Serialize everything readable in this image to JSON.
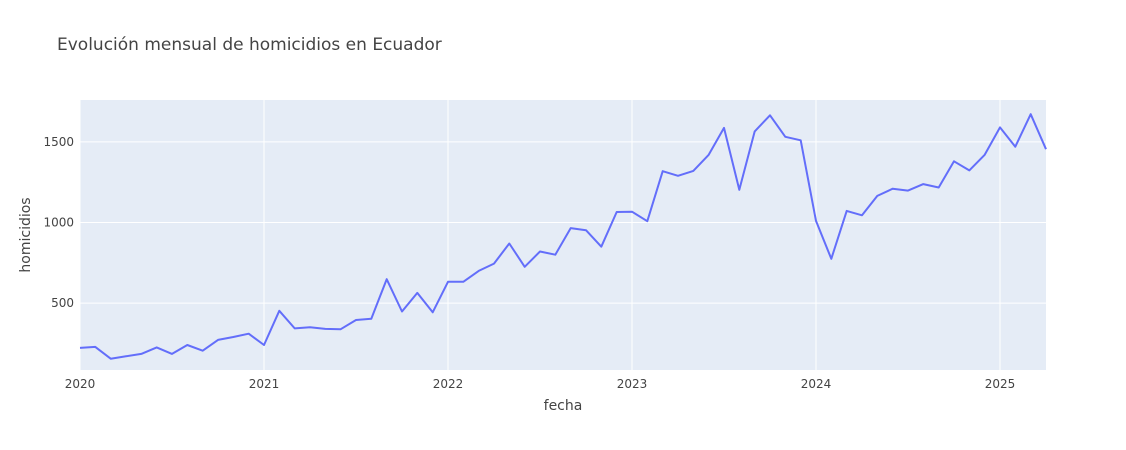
{
  "chart_data": {
    "type": "line",
    "title": "Evolución mensual de homicidios en Ecuador",
    "xlabel": "fecha",
    "ylabel": "homicidios",
    "xlim": [
      "2020-01",
      "2025-04"
    ],
    "ylim": [
      85,
      1760
    ],
    "grid": true,
    "legend": "none",
    "x_ticks": [
      "2020",
      "2021",
      "2022",
      "2023",
      "2024",
      "2025"
    ],
    "y_ticks": [
      500,
      1000,
      1500
    ],
    "colors": {
      "line": "#636efa",
      "plot_bg": "#e5ecf6",
      "grid": "#ffffff",
      "text": "#444444"
    },
    "series": [
      {
        "x": [
          "2020-01",
          "2020-02",
          "2020-03",
          "2020-04",
          "2020-05",
          "2020-06",
          "2020-07",
          "2020-08",
          "2020-09",
          "2020-10",
          "2020-11",
          "2020-12",
          "2021-01",
          "2021-02",
          "2021-03",
          "2021-04",
          "2021-05",
          "2021-06",
          "2021-07",
          "2021-08",
          "2021-09",
          "2021-10",
          "2021-11",
          "2021-12",
          "2022-01",
          "2022-02",
          "2022-03",
          "2022-04",
          "2022-05",
          "2022-06",
          "2022-07",
          "2022-08",
          "2022-09",
          "2022-10",
          "2022-11",
          "2022-12",
          "2023-01",
          "2023-02",
          "2023-03",
          "2023-04",
          "2023-05",
          "2023-06",
          "2023-07",
          "2023-08",
          "2023-09",
          "2023-10",
          "2023-11",
          "2023-12",
          "2024-01",
          "2024-02",
          "2024-03",
          "2024-04",
          "2024-05",
          "2024-06",
          "2024-07",
          "2024-08",
          "2024-09",
          "2024-10",
          "2024-11",
          "2024-12",
          "2025-01",
          "2025-02",
          "2025-03",
          "2025-04"
        ],
        "values": [
          222,
          228,
          155,
          170,
          185,
          225,
          185,
          240,
          205,
          272,
          290,
          310,
          240,
          452,
          343,
          350,
          340,
          338,
          395,
          403,
          648,
          448,
          563,
          443,
          632,
          632,
          700,
          745,
          870,
          725,
          820,
          800,
          965,
          952,
          850,
          1065,
          1067,
          1008,
          1318,
          1290,
          1320,
          1420,
          1587,
          1203,
          1565,
          1665,
          1532,
          1510,
          1010,
          775,
          1072,
          1045,
          1165,
          1210,
          1198,
          1238,
          1217,
          1380,
          1323,
          1420,
          1590,
          1470,
          1672,
          1455
        ]
      }
    ]
  }
}
